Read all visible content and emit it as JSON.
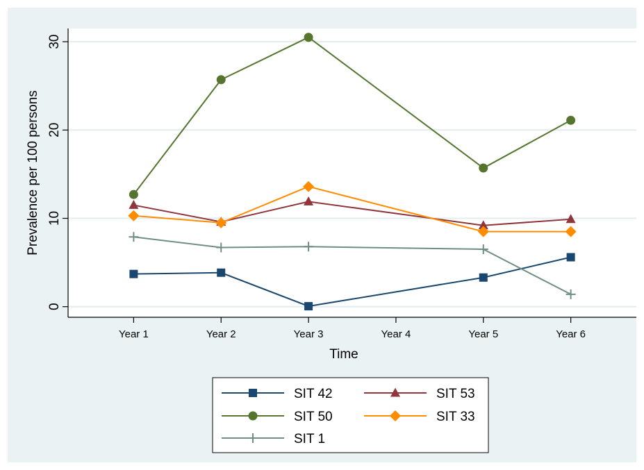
{
  "chart_data": {
    "type": "line",
    "title": "",
    "xlabel": "Time",
    "ylabel": "Prevalence per 100 persons",
    "categories": [
      "Year 1",
      "Year 2",
      "Year 3",
      "Year 4",
      "Year 5",
      "Year 6"
    ],
    "x": [
      1,
      2,
      3,
      4,
      5,
      6
    ],
    "xlim": [
      0.25,
      6.75
    ],
    "ylim": [
      -1.2,
      31.5
    ],
    "yticks": [
      0,
      10,
      20,
      30
    ],
    "grid": true,
    "legend_position": "bottom",
    "series": [
      {
        "name": "SIT 42",
        "color": "#1a476f",
        "marker": "square",
        "x": [
          1,
          2,
          3,
          5,
          6
        ],
        "values": [
          3.7,
          3.85,
          0.05,
          3.3,
          5.6
        ]
      },
      {
        "name": "SIT 53",
        "color": "#90353b",
        "marker": "triangle",
        "x": [
          1,
          2,
          3,
          5,
          6
        ],
        "values": [
          11.5,
          9.6,
          11.9,
          9.2,
          9.9
        ]
      },
      {
        "name": "SIT 50",
        "color": "#55752f",
        "marker": "circle",
        "x": [
          1,
          2,
          3,
          5,
          6
        ],
        "values": [
          12.7,
          25.7,
          30.5,
          15.7,
          21.1
        ]
      },
      {
        "name": "SIT 33",
        "color": "#ff8b00",
        "marker": "diamond",
        "x": [
          1,
          2,
          3,
          5,
          6
        ],
        "values": [
          10.3,
          9.5,
          13.6,
          8.5,
          8.5
        ]
      },
      {
        "name": "SIT 1",
        "color": "#6e8e84",
        "marker": "plus",
        "x": [
          1,
          2,
          3,
          5,
          6
        ],
        "values": [
          7.9,
          6.7,
          6.8,
          6.5,
          1.4
        ]
      }
    ]
  }
}
